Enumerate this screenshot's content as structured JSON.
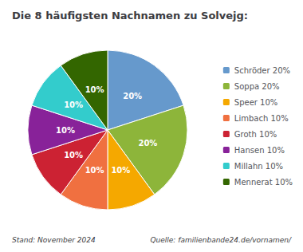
{
  "chart_data": {
    "type": "pie",
    "title": "Die 8 häufigsten Nachnamen zu Solvejg:",
    "categories": [
      "Schröder 20%",
      "Soppa 20%",
      "Speer 10%",
      "Limbach 10%",
      "Groth 10%",
      "Hansen 10%",
      "Millahn 10%",
      "Mennerat 10%"
    ],
    "values": [
      20,
      20,
      10,
      10,
      10,
      10,
      10,
      10
    ],
    "value_labels": [
      "20%",
      "20%",
      "10%",
      "10%",
      "10%",
      "10%",
      "10%",
      "10%"
    ],
    "colors": [
      "#6699CC",
      "#8DB53A",
      "#F5A800",
      "#F07040",
      "#CC2233",
      "#882299",
      "#33CCCC",
      "#336600"
    ],
    "data_labels": true,
    "legend": "right",
    "annotations": [
      "Stand: November 2024",
      "Quelle: familienbande24.de/vornamen/"
    ]
  }
}
